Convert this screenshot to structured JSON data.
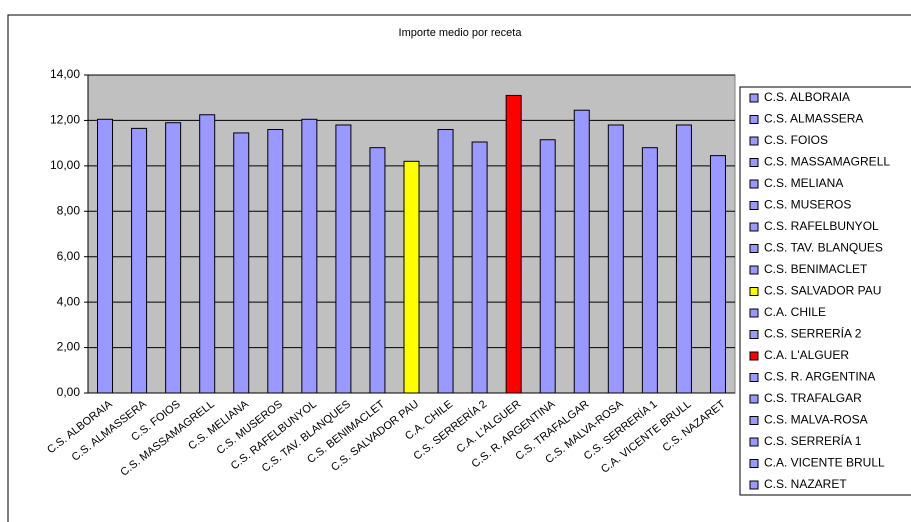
{
  "chart_data": {
    "type": "bar",
    "title": "Importe medio por receta",
    "categories": [
      "C.S. ALBORAIA",
      "C.S. ALMASSERA",
      "C.S. FOIOS",
      "C.S. MASSAMAGRELL",
      "C.S. MELIANA",
      "C.S. MUSEROS",
      "C.S. RAFELBUNYOL",
      "C.S. TAV. BLANQUES",
      "C.S. BENIMACLET",
      "C.S. SALVADOR PAU",
      "C.A. CHILE",
      "C.S. SERRERÍA 2",
      "C.A. L'ALGUER",
      "C.S. R. ARGENTINA",
      "C.S. TRAFALGAR",
      "C.S. MALVA-ROSA",
      "C.S. SERRERÍA 1",
      "C.A. VICENTE BRULL",
      "C.S. NAZARET"
    ],
    "values": [
      12.05,
      11.65,
      11.9,
      12.25,
      11.45,
      11.6,
      12.05,
      11.8,
      10.8,
      10.2,
      11.6,
      11.05,
      13.1,
      11.15,
      12.45,
      11.8,
      10.8,
      11.8,
      10.45
    ],
    "colors": [
      "#9999ff",
      "#9999ff",
      "#9999ff",
      "#9999ff",
      "#9999ff",
      "#9999ff",
      "#9999ff",
      "#9999ff",
      "#9999ff",
      "#ffff00",
      "#9999ff",
      "#9999ff",
      "#ff0000",
      "#9999ff",
      "#9999ff",
      "#9999ff",
      "#9999ff",
      "#9999ff",
      "#9999ff"
    ],
    "ylim": [
      0,
      14
    ],
    "yticks": [
      {
        "value": 0,
        "label": "0,00"
      },
      {
        "value": 2,
        "label": "2,00"
      },
      {
        "value": 4,
        "label": "4,00"
      },
      {
        "value": 6,
        "label": "6,00"
      },
      {
        "value": 8,
        "label": "8,00"
      },
      {
        "value": 10,
        "label": "10,00"
      },
      {
        "value": 12,
        "label": "12,00"
      },
      {
        "value": 14,
        "label": "14,00"
      }
    ],
    "grid": true,
    "legend": "right"
  }
}
